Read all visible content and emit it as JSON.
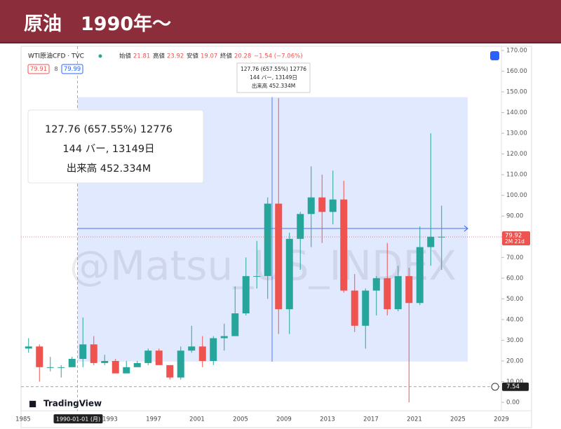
{
  "header": {
    "title": "原油　1990年〜"
  },
  "chart_data": {
    "type": "candlestick",
    "symbol": "WTI原油CFD · TVC",
    "ohlc_legend": [
      {
        "label": "始値",
        "value": 21.81
      },
      {
        "label": "高値",
        "value": 23.92
      },
      {
        "label": "安値",
        "value": 19.07
      },
      {
        "label": "終値",
        "value": 20.28
      }
    ],
    "change": "−1.54 (−7.06%)",
    "bid": 79.91,
    "spread": 8,
    "ask": 79.99,
    "x": [
      1985,
      1986,
      1987,
      1988,
      1989,
      1990,
      1991,
      1992,
      1993,
      1994,
      1995,
      1996,
      1997,
      1998,
      1999,
      2000,
      2001,
      2002,
      2003,
      2004,
      2005,
      2006,
      2007,
      2008,
      2009,
      2010,
      2011,
      2012,
      2013,
      2014,
      2015,
      2016,
      2017,
      2018,
      2019,
      2020,
      2021,
      2022,
      2023
    ],
    "open": [
      26,
      27,
      17,
      17,
      17,
      21,
      28,
      19,
      20,
      14,
      17,
      19,
      25,
      18,
      12,
      25,
      27,
      20,
      31,
      32,
      43,
      61,
      61,
      96,
      45,
      79,
      91,
      99,
      92,
      98,
      54,
      37,
      54,
      60,
      45,
      61,
      48,
      75,
      80
    ],
    "high": [
      31,
      28,
      22,
      18,
      22,
      41,
      32,
      23,
      21,
      20,
      20,
      26,
      26,
      18,
      27,
      37,
      32,
      32,
      38,
      56,
      70,
      78,
      99,
      147,
      82,
      92,
      114,
      110,
      112,
      107,
      62,
      55,
      61,
      77,
      66,
      65,
      85,
      130,
      95
    ],
    "low": [
      24,
      10,
      15,
      12,
      17,
      17,
      18,
      18,
      14,
      14,
      17,
      18,
      19,
      11,
      11,
      24,
      17,
      18,
      25,
      32,
      42,
      55,
      50,
      33,
      33,
      64,
      75,
      77,
      86,
      53,
      34,
      26,
      42,
      42,
      44,
      0,
      47,
      66,
      64
    ],
    "close": [
      27,
      17,
      17,
      17,
      21,
      28,
      19,
      20,
      14,
      17,
      19,
      25,
      18,
      12,
      25,
      27,
      20,
      31,
      32,
      43,
      61,
      61,
      96,
      45,
      79,
      91,
      99,
      92,
      98,
      54,
      37,
      54,
      60,
      45,
      61,
      48,
      75,
      80,
      80
    ],
    "up_color": "#26a69a",
    "down_color": "#ef5350",
    "xlim": [
      1985,
      2031.5
    ],
    "xticks": [
      1985,
      1989,
      1993,
      1997,
      2001,
      2005,
      2009,
      2013,
      2017,
      2021,
      2025,
      2029
    ],
    "ylim": [
      0,
      170
    ],
    "yticks": [
      {
        "value": 0,
        "label": "0.00"
      },
      {
        "value": 10,
        "label": "10.00"
      },
      {
        "value": 20,
        "label": "20.00"
      },
      {
        "value": 30,
        "label": "30.00"
      },
      {
        "value": 40,
        "label": "40.00"
      },
      {
        "value": 50,
        "label": "50.00"
      },
      {
        "value": 60,
        "label": "60.00"
      },
      {
        "value": 70,
        "label": "70.00"
      },
      {
        "value": 80,
        "label": "80.00"
      },
      {
        "value": 90,
        "label": "90.00"
      },
      {
        "value": 100,
        "label": "100.00"
      },
      {
        "value": 110,
        "label": "110.00"
      },
      {
        "value": 120,
        "label": "120.00"
      },
      {
        "value": 130,
        "label": "130.00"
      },
      {
        "value": 140,
        "label": "140.00"
      },
      {
        "value": 150,
        "label": "150.00"
      },
      {
        "value": 160,
        "label": "160.00"
      },
      {
        "value": 170,
        "label": "170.00"
      }
    ],
    "last_price": 79.92,
    "countdown": "2M 21d",
    "crosshair_price": 7.54,
    "crosshair_date": "1990-01-01 (月)",
    "crosshair_x": 1990,
    "measure_range": [
      19.7,
      147.46
    ],
    "measure_x": [
      1990,
      2025.9
    ],
    "measure_level": 84,
    "measure_text": [
      "127.76 (657.55%) 12776",
      "144 バー, 13149日",
      "出来高 452.334M"
    ],
    "watermark": "@Matsu_US_INDEX",
    "brand": "TradingView"
  }
}
